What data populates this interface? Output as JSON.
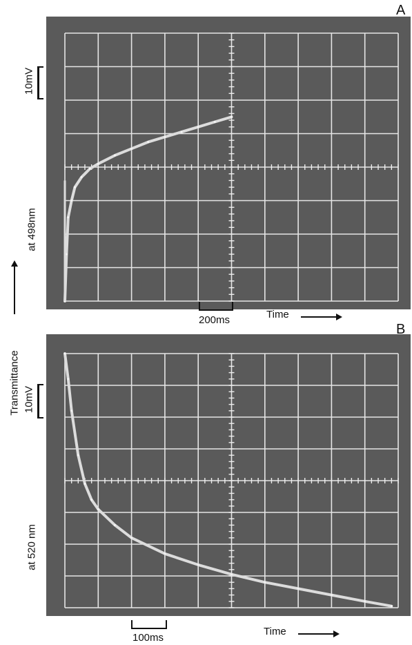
{
  "ylabel": "Transmittance",
  "chart_data": [
    {
      "type": "line",
      "panel": "A",
      "wavelength_label": "at 498nm",
      "y_scale_label": "10mV",
      "time_scale_label": "200ms",
      "xlabel": "Time",
      "grid": true,
      "x_divisions": 10,
      "y_divisions": 8,
      "x_unit_ms_per_div": 200,
      "y_unit_mV_per_div": 10,
      "series": [
        {
          "x_ms": [
            0,
            10,
            20,
            40,
            60,
            100,
            150,
            200,
            300,
            400,
            500,
            600,
            700,
            800,
            900,
            1000
          ],
          "y_mV": [
            0,
            14,
            25,
            30,
            34,
            37,
            39.5,
            41,
            43.5,
            45.5,
            47.5,
            49,
            50.5,
            52,
            53.5,
            55
          ]
        }
      ]
    },
    {
      "type": "line",
      "panel": "B",
      "wavelength_label": "at 520 nm",
      "y_scale_label": "10mV",
      "time_scale_label": "100ms",
      "xlabel": "Time",
      "grid": true,
      "x_divisions": 10,
      "y_divisions": 8,
      "x_unit_ms_per_div": 100,
      "y_unit_mV_per_div": 10,
      "series": [
        {
          "x_ms": [
            0,
            10,
            20,
            40,
            60,
            80,
            100,
            150,
            200,
            300,
            400,
            500,
            600,
            700,
            800,
            900,
            980
          ],
          "y_mV": [
            80,
            72,
            62,
            48,
            39,
            34,
            31,
            26,
            22,
            17,
            13.5,
            10.5,
            8,
            6,
            4,
            2,
            0.5
          ]
        }
      ]
    }
  ]
}
